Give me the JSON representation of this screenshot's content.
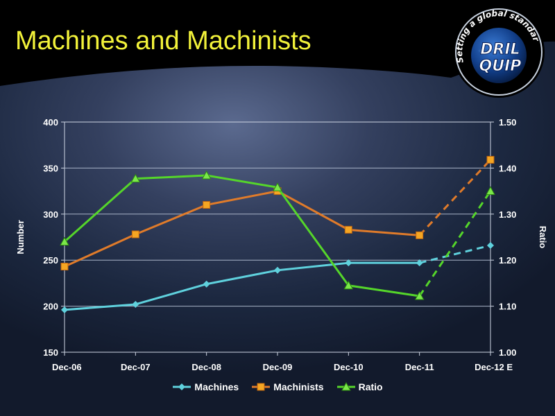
{
  "slide": {
    "title": "Machines and Machinists"
  },
  "logo": {
    "brand_line1": "DRIL",
    "brand_line2": "QUIP",
    "tagline": "Setting a global standard",
    "icon": "globe-logo-icon"
  },
  "colors": {
    "title": "#f2f23a",
    "machines": "#5fd1dd",
    "machinists": "#e07b2a",
    "ratio": "#55d62a"
  },
  "chart_data": {
    "type": "line",
    "categories": [
      "Dec-06",
      "Dec-07",
      "Dec-08",
      "Dec-09",
      "Dec-10",
      "Dec-11",
      "Dec-12 E"
    ],
    "projected_from_index": 5,
    "y_left": {
      "label": "Number",
      "ylim": [
        150,
        400
      ],
      "ticks": [
        150,
        200,
        250,
        300,
        350,
        400
      ]
    },
    "y_right": {
      "label": "Ratio",
      "ylim": [
        1.0,
        1.5
      ],
      "ticks": [
        "1.00",
        "1.10",
        "1.20",
        "1.30",
        "1.40",
        "1.50"
      ]
    },
    "grid": "horizontal",
    "legend_position": "bottom",
    "series": [
      {
        "name": "Machines",
        "axis": "left",
        "marker": "diamond",
        "color": "#5fd1dd",
        "values": [
          196,
          202,
          224,
          239,
          247,
          247,
          266
        ]
      },
      {
        "name": "Machinists",
        "axis": "left",
        "marker": "square",
        "color": "#e07b2a",
        "values": [
          243,
          278,
          310,
          325,
          283,
          277,
          359
        ]
      },
      {
        "name": "Ratio",
        "axis": "right",
        "marker": "triangle",
        "color": "#55d62a",
        "values": [
          1.24,
          1.377,
          1.384,
          1.358,
          1.145,
          1.122,
          1.35
        ]
      }
    ]
  }
}
